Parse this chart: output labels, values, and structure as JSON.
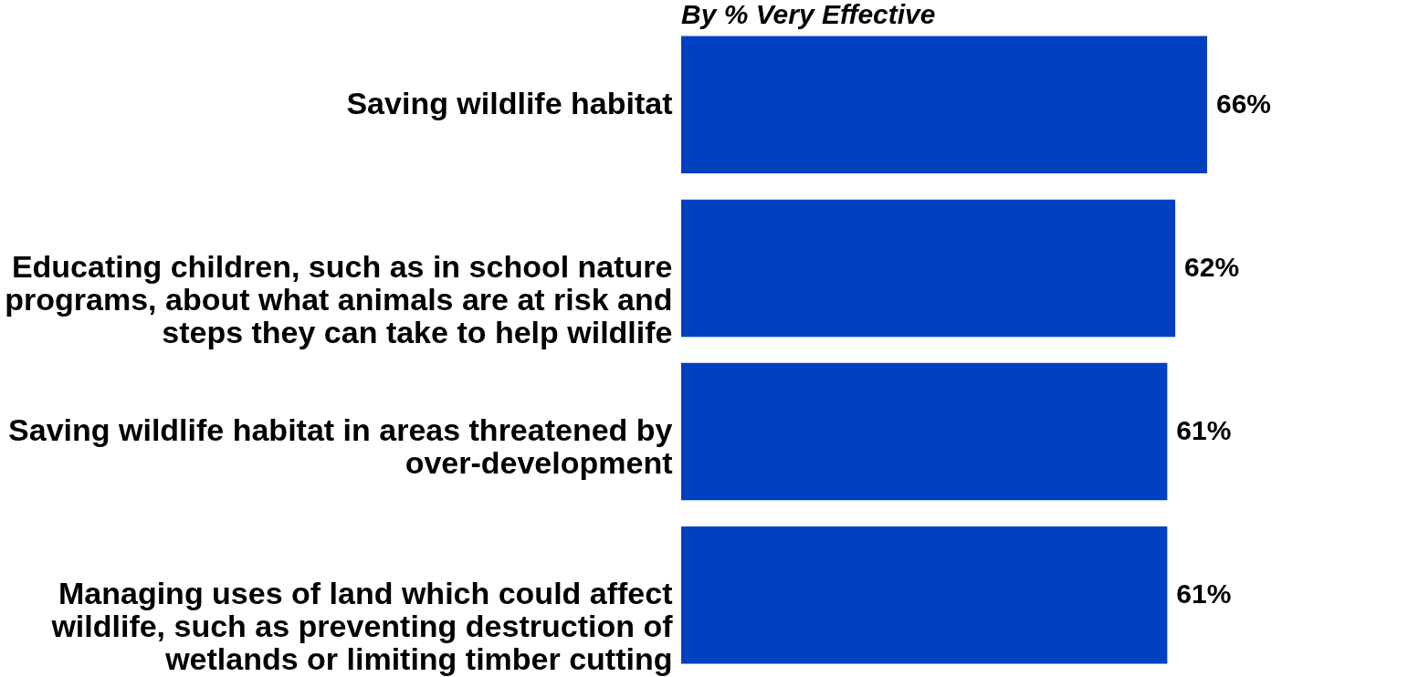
{
  "chart_data": {
    "type": "bar",
    "orientation": "horizontal",
    "title": "By % Very Effective",
    "categories": [
      "Saving wildlife habitat",
      "Educating children, such as in school nature programs, about what animals are at risk and steps they can take to help wildlife",
      "Saving wildlife habitat in areas threatened by over-development",
      "Managing uses of land which could affect wildlife, such as preventing destruction of wetlands or limiting timber cutting"
    ],
    "values": [
      66,
      62,
      61,
      61
    ],
    "value_labels": [
      "66%",
      "62%",
      "61%",
      "61%"
    ],
    "color": "#0041c2"
  }
}
